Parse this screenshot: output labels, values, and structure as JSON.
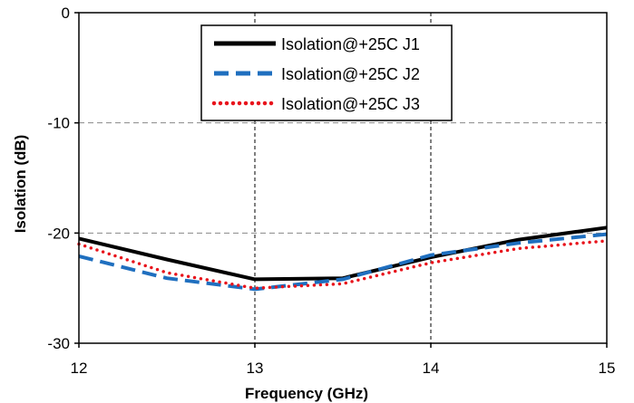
{
  "chart_data": {
    "type": "line",
    "xlabel": "Frequency (GHz)",
    "ylabel": "Isolation (dB)",
    "xlim": [
      12,
      15
    ],
    "ylim": [
      -30,
      0
    ],
    "x_ticks": [
      12,
      13,
      14,
      15
    ],
    "y_ticks": [
      0,
      -10,
      -20,
      -30
    ],
    "grid": "dashed at x=13, x=14 and y=-10, y=-20",
    "legend_position": "top-center",
    "series": [
      {
        "name": "Isolation@+25C J1",
        "color": "#000000",
        "style": "solid",
        "x": [
          12,
          12.5,
          13,
          13.5,
          14,
          14.5,
          15
        ],
        "y": [
          -20.5,
          -22.4,
          -24.2,
          -24.1,
          -22.2,
          -20.6,
          -19.5
        ]
      },
      {
        "name": "Isolation@+25C J2",
        "color": "#1f6fbf",
        "style": "dashed",
        "x": [
          12,
          12.5,
          13,
          13.5,
          14,
          14.5,
          15
        ],
        "y": [
          -22.1,
          -24.1,
          -25.1,
          -24.2,
          -22.0,
          -20.9,
          -20.1
        ]
      },
      {
        "name": "Isolation@+25C J3",
        "color": "#e8141c",
        "style": "dotted",
        "x": [
          12,
          12.5,
          13,
          13.5,
          14,
          14.5,
          15
        ],
        "y": [
          -21.0,
          -23.6,
          -25.0,
          -24.6,
          -22.7,
          -21.4,
          -20.7
        ]
      }
    ]
  }
}
